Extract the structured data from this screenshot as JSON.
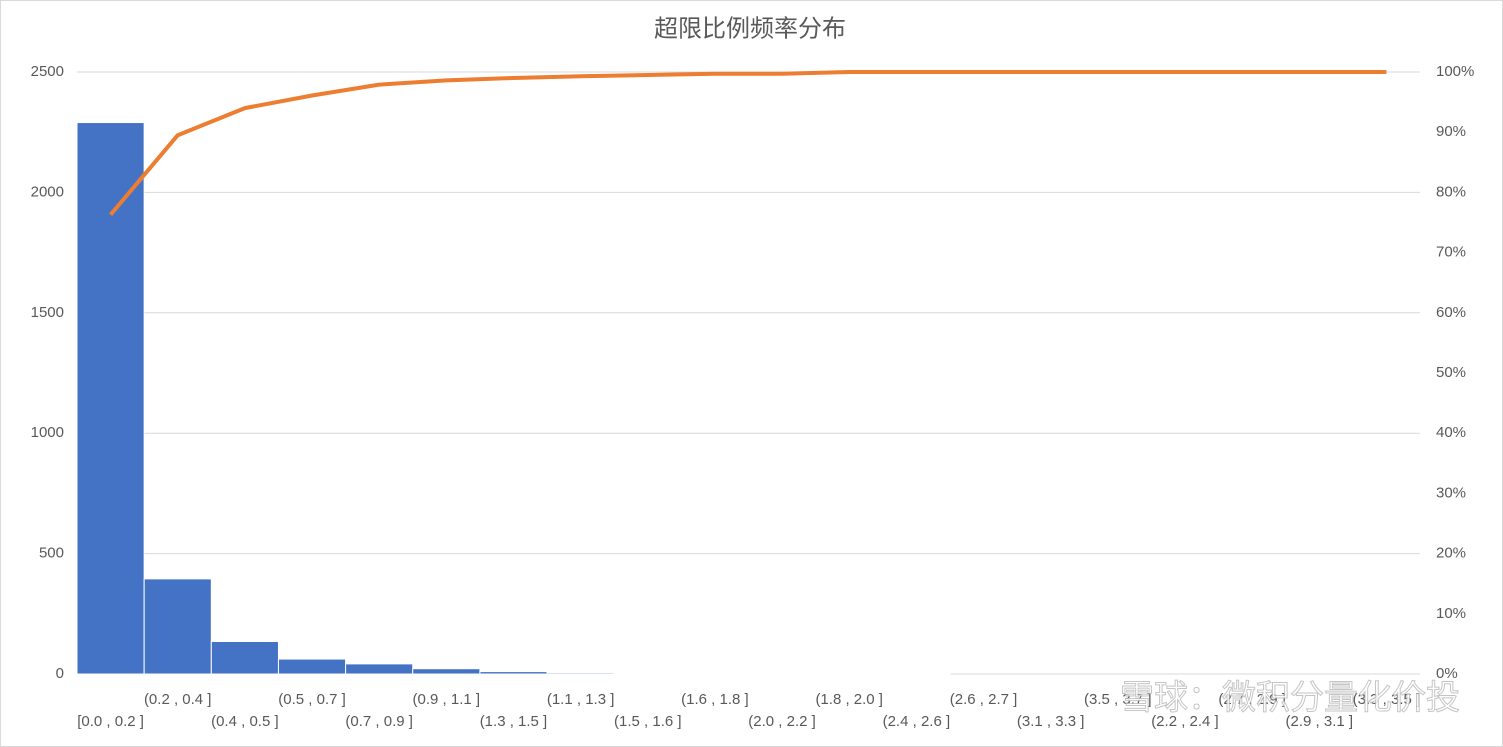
{
  "chart_data": {
    "type": "bar",
    "title": "超限比例频率分布",
    "categories": [
      "[0.0 , 0.2 ]",
      "(0.2 , 0.4 ]",
      "(0.4 , 0.5 ]",
      "(0.5 , 0.7 ]",
      "(0.7 , 0.9 ]",
      "(0.9 , 1.1 ]",
      "(1.3 , 1.5 ]",
      "(1.1 , 1.3 ]",
      "(1.5 , 1.6 ]",
      "(1.6 , 1.8 ]",
      "(2.0 , 2.2 ]",
      "(1.8 , 2.0 ]",
      "(2.4 , 2.6 ]",
      "(2.6 , 2.7 ]",
      "(3.1 , 3.3 ]",
      "(3.5 , 3.7 ]",
      "(2.2 , 2.4 ]",
      "(2.7 , 2.9 ]",
      "(2.9 , 3.1 ]",
      "(3.3 , 3.5 ]"
    ],
    "series": [
      {
        "type": "bar",
        "color": "#4472c4",
        "values": [
          2290,
          395,
          135,
          62,
          42,
          22,
          10,
          5,
          4,
          2,
          1,
          1,
          1,
          0,
          0,
          0,
          0,
          0,
          0,
          0
        ]
      },
      {
        "type": "line",
        "color": "#ed7d31",
        "axis": "y2",
        "values": [
          76.3,
          89.5,
          94.0,
          96.1,
          97.9,
          98.6,
          99.0,
          99.3,
          99.5,
          99.7,
          99.7,
          100,
          100,
          100,
          100,
          100,
          100,
          100,
          100,
          100
        ]
      }
    ],
    "ylim": [
      0,
      2500
    ],
    "yticks": [
      0,
      500,
      1000,
      1500,
      2000,
      2500
    ],
    "y2lim": [
      0,
      100
    ],
    "y2ticks": [
      {
        "value": 0,
        "label": "0%"
      },
      {
        "value": 10,
        "label": "10%"
      },
      {
        "value": 20,
        "label": "20%"
      },
      {
        "value": 30,
        "label": "30%"
      },
      {
        "value": 40,
        "label": "40%"
      },
      {
        "value": 50,
        "label": "50%"
      },
      {
        "value": 60,
        "label": "60%"
      },
      {
        "value": 70,
        "label": "70%"
      },
      {
        "value": 80,
        "label": "80%"
      },
      {
        "value": 90,
        "label": "90%"
      },
      {
        "value": 100,
        "label": "100%"
      }
    ],
    "grid": true
  },
  "watermark": "雪球：微积分量化价投"
}
